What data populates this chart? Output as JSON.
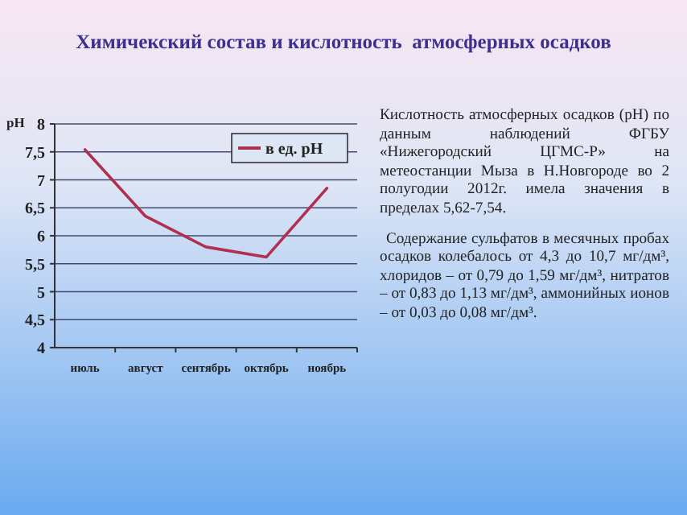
{
  "chart_data": {
    "type": "line",
    "title": "Химичекский состав и кислотность  атмосферных осадков",
    "ylabel": "pH",
    "categories": [
      "июль",
      "август",
      "сентябрь",
      "октябрь",
      "ноябрь"
    ],
    "series": [
      {
        "name": "в ед. pH",
        "color": "#b03050",
        "values": [
          7.54,
          6.35,
          5.8,
          5.62,
          6.85
        ]
      }
    ],
    "ylim": [
      4,
      8
    ],
    "yticks": [
      4,
      {
        "value": 4.5,
        "label": "4,5"
      },
      5,
      {
        "value": 5.5,
        "label": "5,5"
      },
      6,
      {
        "value": 6.5,
        "label": "6,5"
      },
      7,
      {
        "value": 7.5,
        "label": "7,5"
      },
      8
    ],
    "grid": "y",
    "legend": "top right",
    "marker": "none",
    "line_style": "solid",
    "annotations": [
      "Кислотность атмосферных осадков (pH) по данным наблюдений ФГБУ «Нижегородский ЦГМС-Р» на метеостанции Мыза в Н.Новгороде во 2 полугодии 2012г. имела значения в пределах 5,62-7,54.",
      "Содержание сульфатов в месячных пробах осадков колебалось от 4,3 до 10,7 мг/дм³, хлоридов – от 0,79 до 1,59 мг/дм³, нитратов – от 0,83 до 1,13 мг/дм³, аммонийных ионов – от 0,03 до 0,08 мг/дм³."
    ]
  }
}
